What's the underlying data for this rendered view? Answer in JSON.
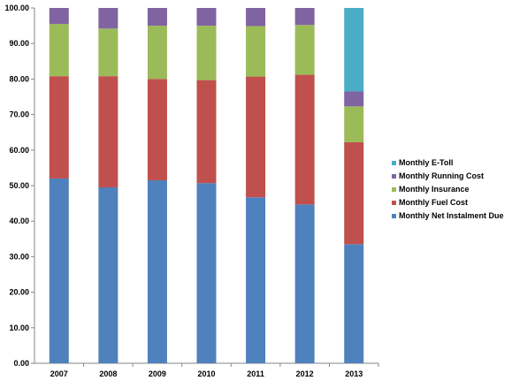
{
  "chart_data": {
    "type": "bar",
    "stacked": true,
    "categories": [
      "2007",
      "2008",
      "2009",
      "2010",
      "2011",
      "2012",
      "2013"
    ],
    "series": [
      {
        "name": "Monthly Net Instalment Due",
        "color": "#4F81BD",
        "values": [
          52.0,
          49.5,
          51.5,
          50.7,
          46.7,
          44.7,
          33.5
        ]
      },
      {
        "name": "Monthly Fuel Cost",
        "color": "#C0504D",
        "values": [
          28.8,
          31.3,
          28.5,
          29.0,
          34.0,
          36.5,
          28.7
        ]
      },
      {
        "name": "Monthly Insurance",
        "color": "#9BBB59",
        "values": [
          14.7,
          13.4,
          15.0,
          15.3,
          14.2,
          14.0,
          10.1
        ]
      },
      {
        "name": "Monthly Running Cost",
        "color": "#8064A2",
        "values": [
          4.5,
          5.8,
          5.0,
          5.0,
          5.1,
          4.8,
          4.2
        ]
      },
      {
        "name": "Monthly E-Toll",
        "color": "#4BACC6",
        "values": [
          0,
          0,
          0,
          0,
          0,
          0,
          23.5
        ]
      }
    ],
    "ylim": [
      0,
      100
    ],
    "yticks": [
      "0.00",
      "10.00",
      "20.00",
      "30.00",
      "40.00",
      "50.00",
      "60.00",
      "70.00",
      "80.00",
      "90.00",
      "100.00"
    ],
    "grid": false,
    "legend_position": "right",
    "legend_order": [
      "Monthly E-Toll",
      "Monthly Running Cost",
      "Monthly Insurance",
      "Monthly Fuel Cost",
      "Monthly Net Instalment Due"
    ],
    "title": "",
    "xlabel": "",
    "ylabel": ""
  }
}
